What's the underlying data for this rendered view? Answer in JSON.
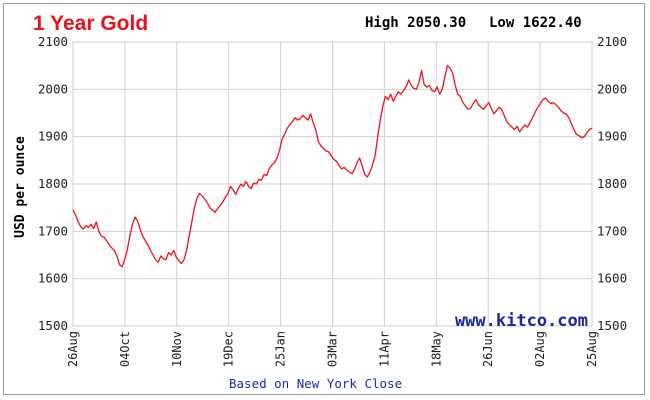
{
  "chart_data": {
    "type": "line",
    "title": "1 Year Gold",
    "high_label": "High 2050.30",
    "low_label": "Low 1622.40",
    "ylabel": "USD per ounce",
    "footer": "Based on New York Close",
    "watermark": "www.kitco.com",
    "ylim": [
      1500,
      2100
    ],
    "yticks": [
      1500,
      1600,
      1700,
      1800,
      1900,
      2000,
      2100
    ],
    "x_labels": [
      "26Aug",
      "04Oct",
      "10Nov",
      "19Dec",
      "25Jan",
      "03Mar",
      "11Apr",
      "18May",
      "26Jun",
      "02Aug",
      "25Aug"
    ],
    "grid": true,
    "line_color": "#e8141c",
    "series": [
      {
        "values": [
          1745,
          1735,
          1720,
          1710,
          1705,
          1712,
          1708,
          1715,
          1706,
          1720,
          1700,
          1690,
          1688,
          1680,
          1672,
          1665,
          1660,
          1648,
          1630,
          1625,
          1640,
          1660,
          1690,
          1715,
          1730,
          1722,
          1705,
          1690,
          1680,
          1672,
          1660,
          1650,
          1640,
          1635,
          1648,
          1642,
          1640,
          1655,
          1650,
          1660,
          1645,
          1638,
          1632,
          1640,
          1660,
          1690,
          1720,
          1750,
          1770,
          1780,
          1775,
          1768,
          1760,
          1750,
          1745,
          1740,
          1748,
          1755,
          1762,
          1772,
          1780,
          1795,
          1788,
          1778,
          1790,
          1800,
          1795,
          1805,
          1795,
          1790,
          1802,
          1800,
          1810,
          1808,
          1820,
          1818,
          1832,
          1840,
          1845,
          1855,
          1872,
          1895,
          1905,
          1918,
          1925,
          1932,
          1940,
          1935,
          1938,
          1945,
          1940,
          1935,
          1948,
          1930,
          1915,
          1890,
          1880,
          1875,
          1870,
          1868,
          1860,
          1852,
          1848,
          1840,
          1832,
          1835,
          1830,
          1825,
          1822,
          1830,
          1845,
          1855,
          1838,
          1820,
          1815,
          1825,
          1840,
          1860,
          1900,
          1935,
          1965,
          1985,
          1978,
          1990,
          1975,
          1985,
          1995,
          1990,
          1998,
          2005,
          2020,
          2008,
          2002,
          2000,
          2015,
          2040,
          2010,
          2005,
          2008,
          1998,
          1995,
          2005,
          1990,
          2000,
          2025,
          2050,
          2045,
          2035,
          2010,
          1990,
          1985,
          1972,
          1965,
          1958,
          1960,
          1970,
          1978,
          1968,
          1962,
          1958,
          1965,
          1972,
          1960,
          1948,
          1955,
          1962,
          1958,
          1945,
          1932,
          1925,
          1920,
          1915,
          1922,
          1910,
          1918,
          1925,
          1920,
          1930,
          1940,
          1952,
          1962,
          1970,
          1978,
          1982,
          1975,
          1970,
          1972,
          1968,
          1962,
          1955,
          1950,
          1948,
          1940,
          1928,
          1915,
          1905,
          1902,
          1898,
          1900,
          1908,
          1915,
          1918
        ]
      }
    ]
  }
}
